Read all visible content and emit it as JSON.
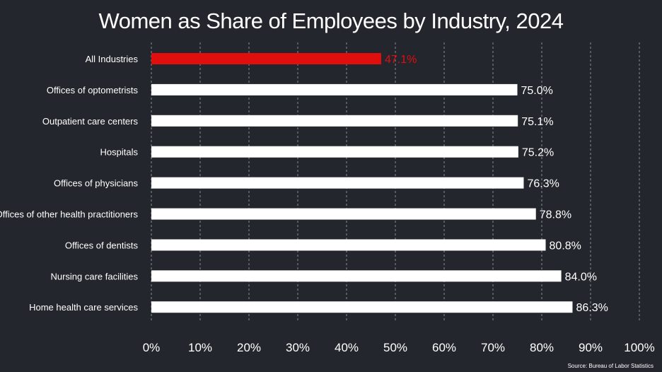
{
  "chart_data": {
    "type": "bar",
    "orientation": "horizontal",
    "title": "Women as Share of Employees by Industry, 2024",
    "categories": [
      "All Industries",
      "Offices of optometrists",
      "Outpatient care centers",
      "Hospitals",
      "Offices of physicians",
      "Offices of other health practitioners",
      "Offices of dentists",
      "Nursing care facilities",
      "Home health care services"
    ],
    "values": [
      47.1,
      75.0,
      75.1,
      75.2,
      76.3,
      78.8,
      80.8,
      84.0,
      86.3
    ],
    "value_labels": [
      "47.1%",
      "75.0%",
      "75.1%",
      "75.2%",
      "76.3%",
      "78.8%",
      "80.8%",
      "84.0%",
      "86.3%"
    ],
    "highlight_index": 0,
    "xlim": [
      0,
      100
    ],
    "x_ticks": [
      0,
      10,
      20,
      30,
      40,
      50,
      60,
      70,
      80,
      90,
      100
    ],
    "x_tick_labels": [
      "0%",
      "10%",
      "20%",
      "30%",
      "40%",
      "50%",
      "60%",
      "70%",
      "80%",
      "90%",
      "100%"
    ],
    "grid": "vertical dashed",
    "colors": {
      "background": "#23262c",
      "bar": "#ffffff",
      "highlight": "#e10e0e",
      "grid": "#8a8d93",
      "text": "#ffffff"
    }
  },
  "source": "Source: Bureau of Labor Statistics"
}
